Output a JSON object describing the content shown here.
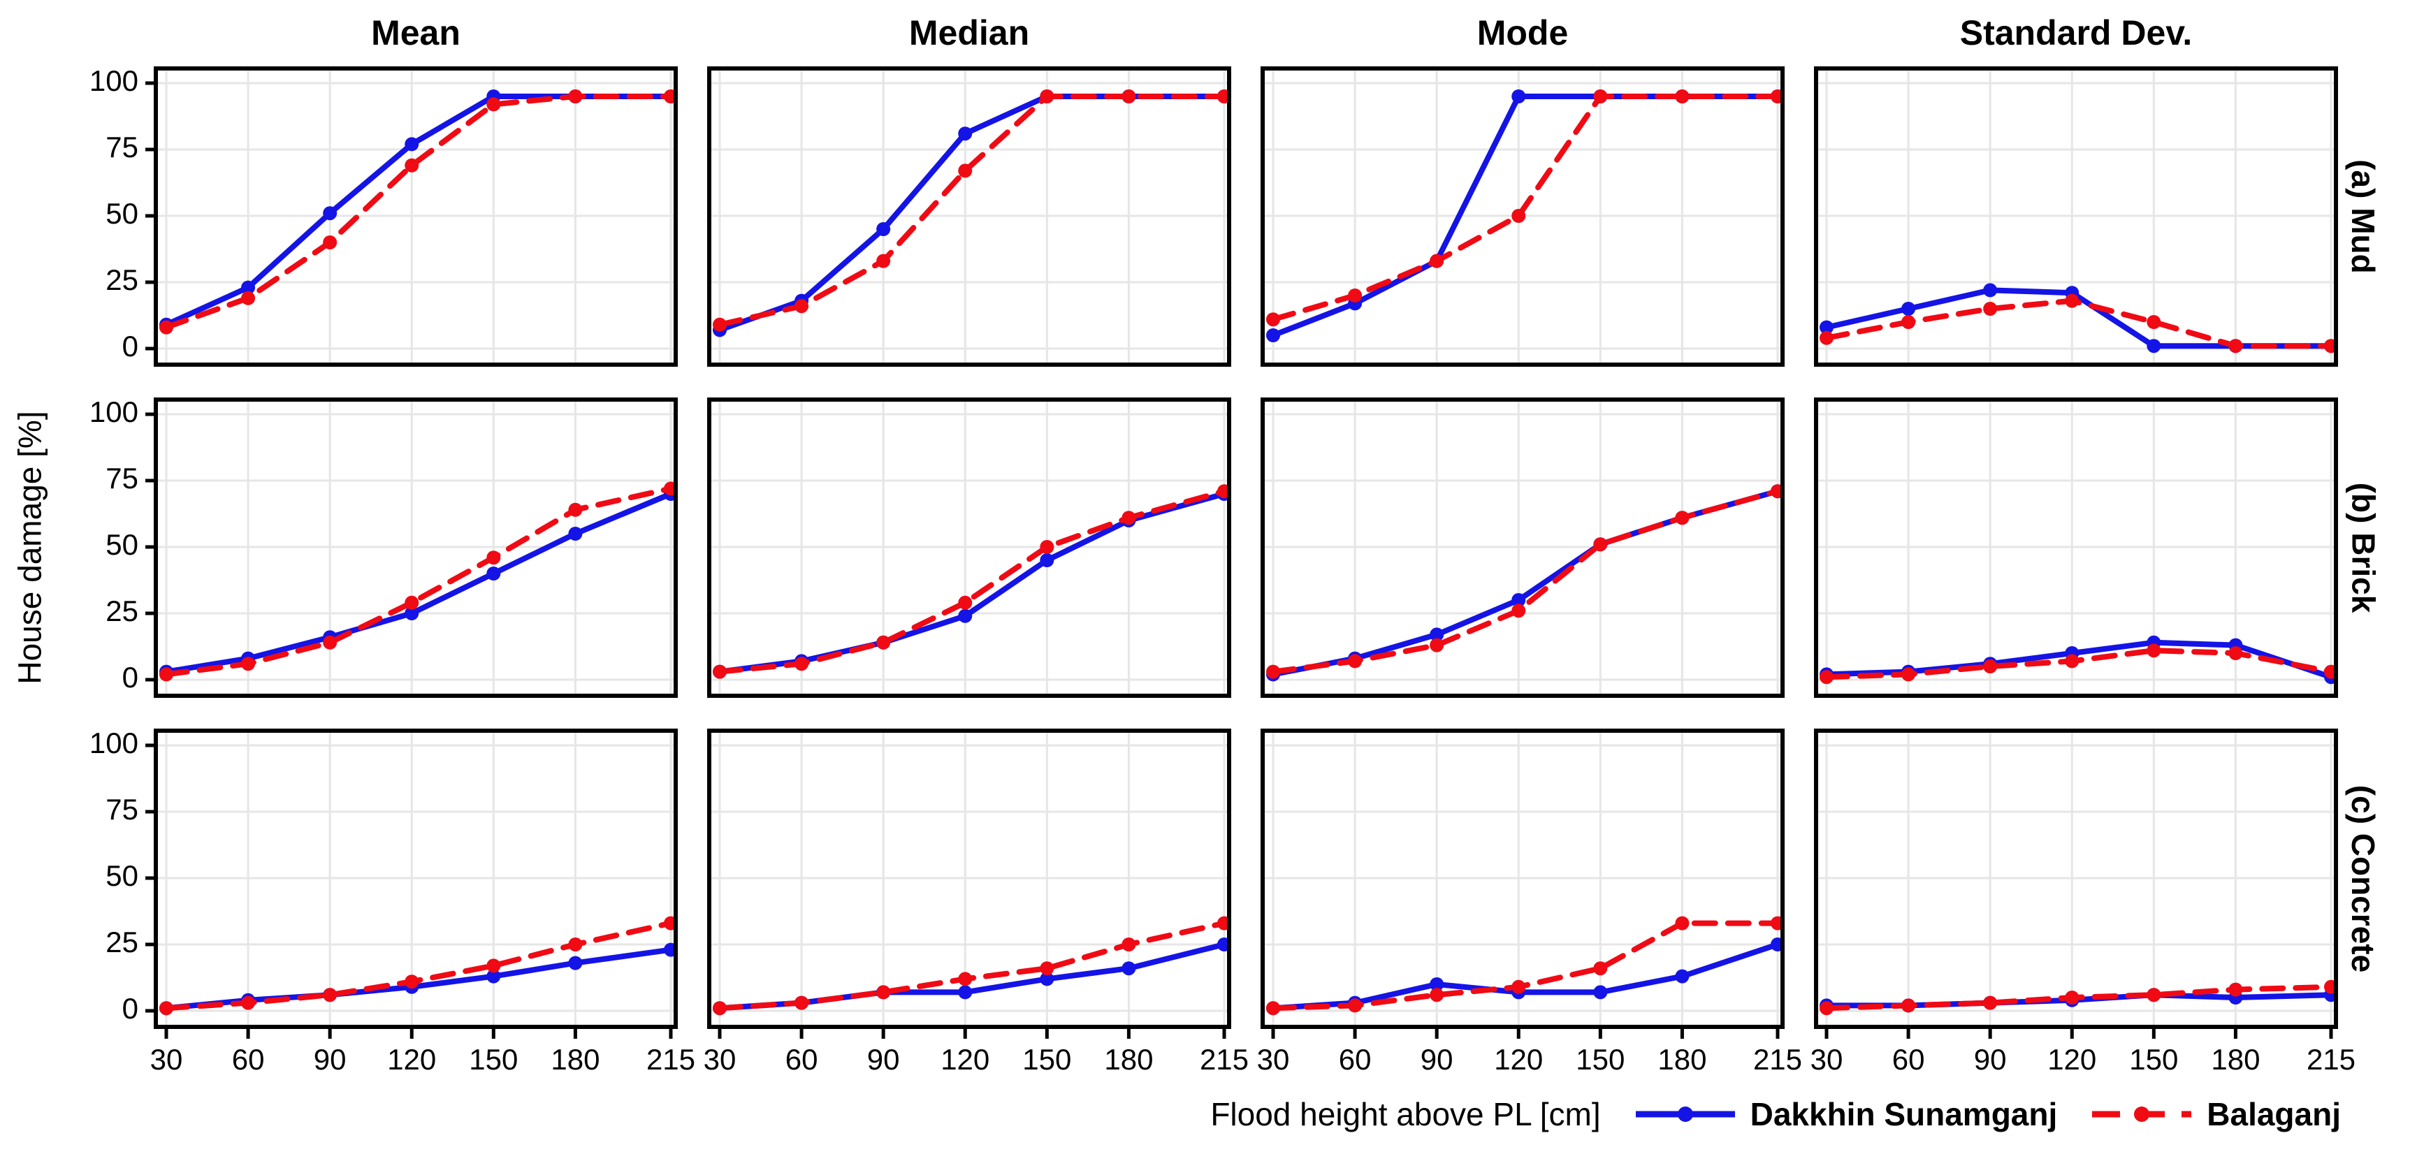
{
  "figure": {
    "y_axis_label": "House damage [%]",
    "x_axis_label": "Flood height above PL [cm]",
    "column_titles": [
      "Mean",
      "Median",
      "Mode",
      "Standard Dev."
    ],
    "row_labels": [
      "(a) Mud",
      "(b) Brick",
      "(c) Concrete"
    ]
  },
  "legend": {
    "position": "bottom-right",
    "series": [
      {
        "name": "Dakkhin Sunamganj",
        "color": "#1414e6",
        "style": "solid",
        "marker": "circle"
      },
      {
        "name": "Balaganj",
        "color": "#f00a14",
        "style": "dashed",
        "marker": "circle"
      }
    ]
  },
  "axes": {
    "x_ticks": [
      30,
      60,
      90,
      120,
      150,
      180,
      215
    ],
    "y_ticks": [
      0,
      25,
      50,
      75,
      100
    ],
    "xlim": [
      30,
      215
    ],
    "ylim": [
      0,
      100
    ],
    "grid": true,
    "grid_color": "#e6e6e6",
    "frame_color": "#000000"
  },
  "chart_data": [
    {
      "row": "(a) Mud",
      "column": "Mean",
      "type": "line",
      "x": [
        30,
        60,
        90,
        120,
        150,
        180,
        215
      ],
      "series": [
        {
          "name": "Dakkhin Sunamganj",
          "values": [
            9,
            23,
            51,
            77,
            95,
            95,
            95
          ]
        },
        {
          "name": "Balaganj",
          "values": [
            8,
            19,
            40,
            69,
            92,
            95,
            95
          ]
        }
      ]
    },
    {
      "row": "(a) Mud",
      "column": "Median",
      "type": "line",
      "x": [
        30,
        60,
        90,
        120,
        150,
        180,
        215
      ],
      "series": [
        {
          "name": "Dakkhin Sunamganj",
          "values": [
            7,
            18,
            45,
            81,
            95,
            95,
            95
          ]
        },
        {
          "name": "Balaganj",
          "values": [
            9,
            16,
            33,
            67,
            95,
            95,
            95
          ]
        }
      ]
    },
    {
      "row": "(a) Mud",
      "column": "Mode",
      "type": "line",
      "x": [
        30,
        60,
        90,
        120,
        150,
        180,
        215
      ],
      "series": [
        {
          "name": "Dakkhin Sunamganj",
          "values": [
            5,
            17,
            33,
            95,
            95,
            95,
            95
          ]
        },
        {
          "name": "Balaganj",
          "values": [
            11,
            20,
            33,
            50,
            95,
            95,
            95
          ]
        }
      ]
    },
    {
      "row": "(a) Mud",
      "column": "Standard Dev.",
      "type": "line",
      "x": [
        30,
        60,
        90,
        120,
        150,
        180,
        215
      ],
      "series": [
        {
          "name": "Dakkhin Sunamganj",
          "values": [
            8,
            15,
            22,
            21,
            1,
            1,
            1
          ]
        },
        {
          "name": "Balaganj",
          "values": [
            4,
            10,
            15,
            18,
            10,
            1,
            1
          ]
        }
      ]
    },
    {
      "row": "(b) Brick",
      "column": "Mean",
      "type": "line",
      "x": [
        30,
        60,
        90,
        120,
        150,
        180,
        215
      ],
      "series": [
        {
          "name": "Dakkhin Sunamganj",
          "values": [
            3,
            8,
            16,
            25,
            40,
            55,
            70
          ]
        },
        {
          "name": "Balaganj",
          "values": [
            2,
            6,
            14,
            29,
            46,
            64,
            72
          ]
        }
      ]
    },
    {
      "row": "(b) Brick",
      "column": "Median",
      "type": "line",
      "x": [
        30,
        60,
        90,
        120,
        150,
        180,
        215
      ],
      "series": [
        {
          "name": "Dakkhin Sunamganj",
          "values": [
            3,
            7,
            14,
            24,
            45,
            60,
            70
          ]
        },
        {
          "name": "Balaganj",
          "values": [
            3,
            6,
            14,
            29,
            50,
            61,
            71
          ]
        }
      ]
    },
    {
      "row": "(b) Brick",
      "column": "Mode",
      "type": "line",
      "x": [
        30,
        60,
        90,
        120,
        150,
        180,
        215
      ],
      "series": [
        {
          "name": "Dakkhin Sunamganj",
          "values": [
            2,
            8,
            17,
            30,
            51,
            61,
            71
          ]
        },
        {
          "name": "Balaganj",
          "values": [
            3,
            7,
            13,
            26,
            51,
            61,
            71
          ]
        }
      ]
    },
    {
      "row": "(b) Brick",
      "column": "Standard Dev.",
      "type": "line",
      "x": [
        30,
        60,
        90,
        120,
        150,
        180,
        215
      ],
      "series": [
        {
          "name": "Dakkhin Sunamganj",
          "values": [
            2,
            3,
            6,
            10,
            14,
            13,
            1
          ]
        },
        {
          "name": "Balaganj",
          "values": [
            1,
            2,
            5,
            7,
            11,
            10,
            3
          ]
        }
      ]
    },
    {
      "row": "(c) Concrete",
      "column": "Mean",
      "type": "line",
      "x": [
        30,
        60,
        90,
        120,
        150,
        180,
        215
      ],
      "series": [
        {
          "name": "Dakkhin Sunamganj",
          "values": [
            1,
            4,
            6,
            9,
            13,
            18,
            23
          ]
        },
        {
          "name": "Balaganj",
          "values": [
            1,
            3,
            6,
            11,
            17,
            25,
            33
          ]
        }
      ]
    },
    {
      "row": "(c) Concrete",
      "column": "Median",
      "type": "line",
      "x": [
        30,
        60,
        90,
        120,
        150,
        180,
        215
      ],
      "series": [
        {
          "name": "Dakkhin Sunamganj",
          "values": [
            1,
            3,
            7,
            7,
            12,
            16,
            25
          ]
        },
        {
          "name": "Balaganj",
          "values": [
            1,
            3,
            7,
            12,
            16,
            25,
            33
          ]
        }
      ]
    },
    {
      "row": "(c) Concrete",
      "column": "Mode",
      "type": "line",
      "x": [
        30,
        60,
        90,
        120,
        150,
        180,
        215
      ],
      "series": [
        {
          "name": "Dakkhin Sunamganj",
          "values": [
            1,
            3,
            10,
            7,
            7,
            13,
            25
          ]
        },
        {
          "name": "Balaganj",
          "values": [
            1,
            2,
            6,
            9,
            16,
            33,
            33
          ]
        }
      ]
    },
    {
      "row": "(c) Concrete",
      "column": "Standard Dev.",
      "type": "line",
      "x": [
        30,
        60,
        90,
        120,
        150,
        180,
        215
      ],
      "series": [
        {
          "name": "Dakkhin Sunamganj",
          "values": [
            2,
            2,
            3,
            4,
            6,
            5,
            6
          ]
        },
        {
          "name": "Balaganj",
          "values": [
            1,
            2,
            3,
            5,
            6,
            8,
            9
          ]
        }
      ]
    }
  ]
}
